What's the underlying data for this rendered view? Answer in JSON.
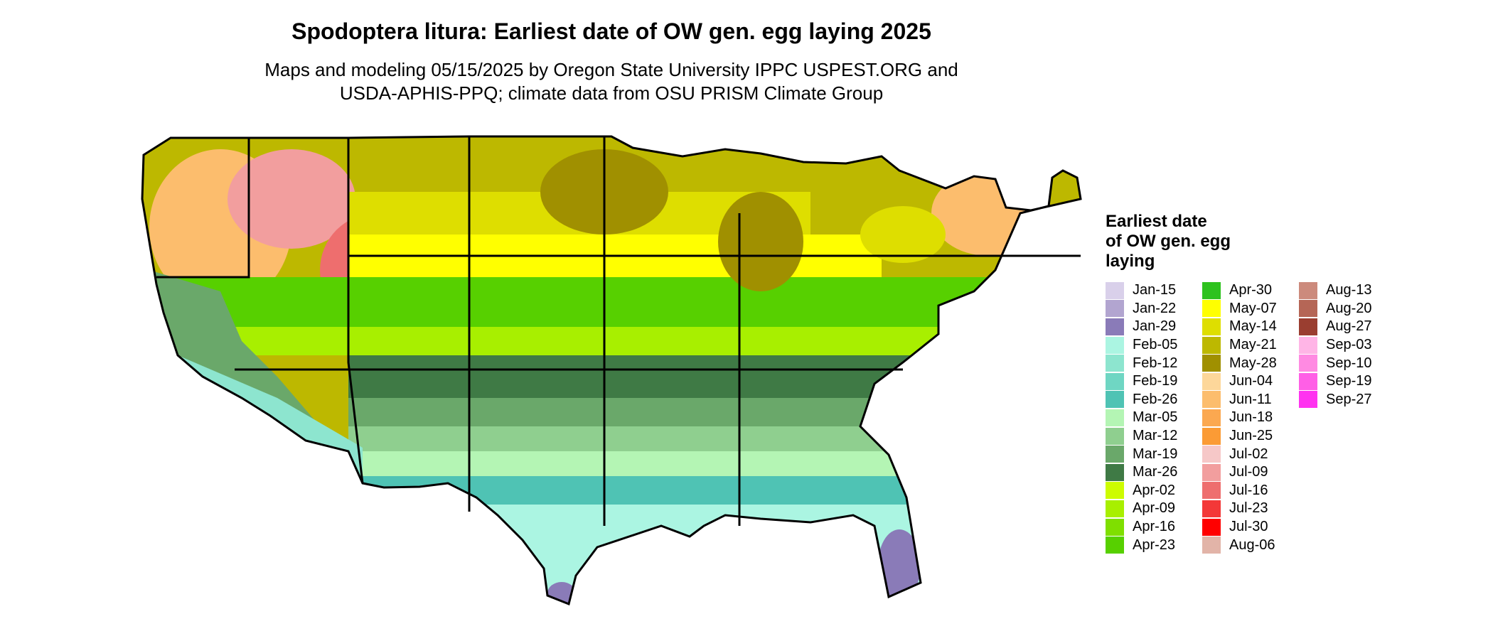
{
  "title": "Spodoptera litura: Earliest date of OW gen. egg laying 2025",
  "subtitle_line1": "Maps and modeling 05/15/2025 by Oregon State University IPPC USPEST.ORG and",
  "subtitle_line2": "USDA-APHIS-PPQ; climate data from OSU PRISM Climate Group",
  "map_label": "",
  "legend": {
    "title_line1": "Earliest date",
    "title_line2": "of OW gen. egg",
    "title_line3": "laying",
    "columns": [
      [
        {
          "label": "Jan-15",
          "color": "#d9d0ea"
        },
        {
          "label": "Jan-22",
          "color": "#b2a5d0"
        },
        {
          "label": "Jan-29",
          "color": "#8a7bb8"
        },
        {
          "label": "Feb-05",
          "color": "#abf5e2"
        },
        {
          "label": "Feb-12",
          "color": "#8de5cf"
        },
        {
          "label": "Feb-19",
          "color": "#6fd6c3"
        },
        {
          "label": "Feb-26",
          "color": "#4fc3b4"
        },
        {
          "label": "Mar-05",
          "color": "#b4f5b4"
        },
        {
          "label": "Mar-12",
          "color": "#8fcf8f"
        },
        {
          "label": "Mar-19",
          "color": "#6aa86a"
        },
        {
          "label": "Mar-26",
          "color": "#3f7a45"
        },
        {
          "label": "Apr-02",
          "color": "#cdfc00"
        },
        {
          "label": "Apr-09",
          "color": "#a8ef00"
        },
        {
          "label": "Apr-16",
          "color": "#7fdf00"
        },
        {
          "label": "Apr-23",
          "color": "#57d000"
        }
      ],
      [
        {
          "label": "Apr-30",
          "color": "#2ec21e"
        },
        {
          "label": "May-07",
          "color": "#ffff00"
        },
        {
          "label": "May-14",
          "color": "#dede00"
        },
        {
          "label": "May-21",
          "color": "#bdb800"
        },
        {
          "label": "May-28",
          "color": "#a09000"
        },
        {
          "label": "Jun-04",
          "color": "#fdd79a"
        },
        {
          "label": "Jun-11",
          "color": "#fcbd6d"
        },
        {
          "label": "Jun-18",
          "color": "#fba850"
        },
        {
          "label": "Jun-25",
          "color": "#fb9b35"
        },
        {
          "label": "Jul-02",
          "color": "#f6c8c8"
        },
        {
          "label": "Jul-09",
          "color": "#f29e9e"
        },
        {
          "label": "Jul-16",
          "color": "#ee6e6e"
        },
        {
          "label": "Jul-23",
          "color": "#f33838"
        },
        {
          "label": "Jul-30",
          "color": "#ff0000"
        },
        {
          "label": "Aug-06",
          "color": "#e2b4a8"
        }
      ],
      [
        {
          "label": "Aug-13",
          "color": "#cc8a7c"
        },
        {
          "label": "Aug-20",
          "color": "#b56656"
        },
        {
          "label": "Aug-27",
          "color": "#9a3e30"
        },
        {
          "label": "Sep-03",
          "color": "#ffb5e6"
        },
        {
          "label": "Sep-10",
          "color": "#ff8ae2"
        },
        {
          "label": "Sep-19",
          "color": "#ff5fe6"
        },
        {
          "label": "Sep-27",
          "color": "#ff33f0"
        }
      ]
    ]
  }
}
